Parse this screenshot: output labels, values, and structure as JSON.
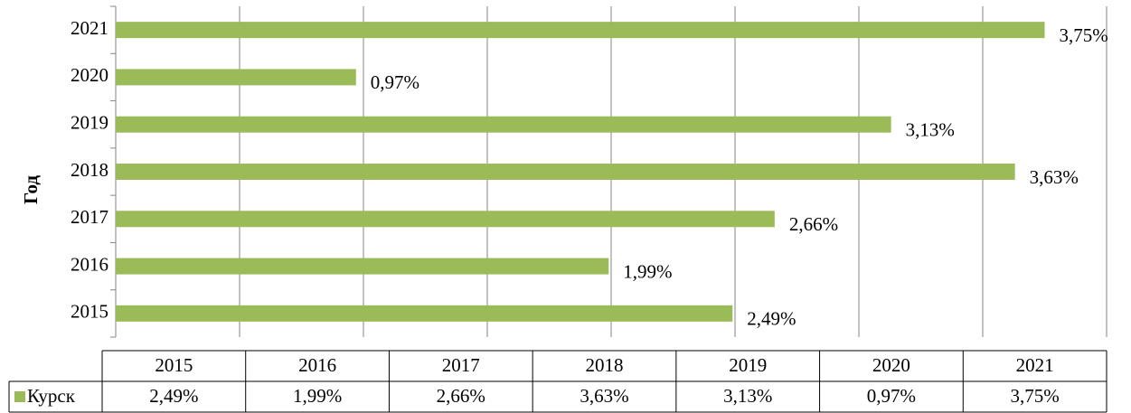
{
  "chart_data": {
    "type": "bar",
    "orientation": "horizontal",
    "y_axis_label": "Год",
    "categories": [
      "2015",
      "2016",
      "2017",
      "2018",
      "2019",
      "2020",
      "2021"
    ],
    "series": [
      {
        "name": "Курск",
        "color": "#9bbb59",
        "values": [
          2.49,
          1.99,
          2.66,
          3.63,
          3.13,
          0.97,
          3.75
        ],
        "value_labels": [
          "2,49%",
          "1,99%",
          "2,66%",
          "3,63%",
          "3,13%",
          "0,97%",
          "3,75%"
        ]
      }
    ],
    "xlim": [
      0,
      4
    ],
    "xticks": [
      0,
      0.5,
      1,
      1.5,
      2,
      2.5,
      3,
      3.5,
      4
    ],
    "grid": true,
    "legend": "data-table"
  }
}
